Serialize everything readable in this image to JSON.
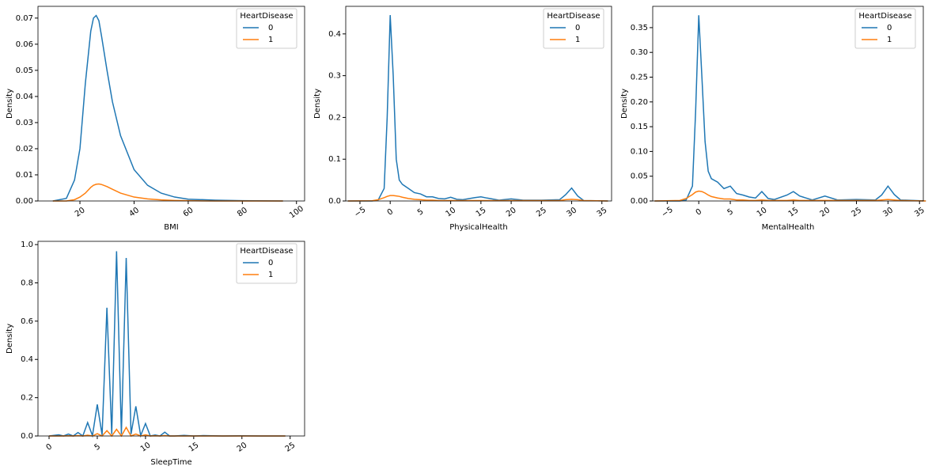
{
  "chart_data": [
    {
      "type": "line",
      "xlabel": "BMI",
      "ylabel": "Density",
      "legend_title": "HeartDisease",
      "legend": "upper right",
      "x": [
        10,
        15,
        18,
        20,
        22,
        24,
        25,
        26,
        27,
        28,
        30,
        32,
        35,
        40,
        45,
        50,
        55,
        60,
        70,
        80,
        95
      ],
      "series": [
        {
          "name": "0",
          "color": "#1f77b4",
          "values": [
            0,
            0.001,
            0.008,
            0.02,
            0.045,
            0.065,
            0.07,
            0.071,
            0.069,
            0.063,
            0.05,
            0.038,
            0.025,
            0.012,
            0.006,
            0.003,
            0.0015,
            0.0007,
            0.0003,
            0.0001,
            0
          ]
        },
        {
          "name": "1",
          "color": "#ff7f0e",
          "values": [
            0,
            0,
            0.0005,
            0.0015,
            0.003,
            0.0052,
            0.006,
            0.0064,
            0.0065,
            0.0063,
            0.0055,
            0.0045,
            0.003,
            0.0015,
            0.0008,
            0.0004,
            0.0002,
            0.0001,
            0,
            0,
            0
          ]
        }
      ],
      "xlim": [
        4.5,
        103
      ],
      "xticks": [
        20,
        40,
        60,
        80,
        100
      ],
      "ylim": [
        0,
        0.0745
      ],
      "yticks": [
        {
          "value": 0,
          "label": "0.00"
        },
        {
          "value": 0.01,
          "label": "0.01"
        },
        {
          "value": 0.02,
          "label": "0.02"
        },
        {
          "value": 0.03,
          "label": "0.03"
        },
        {
          "value": 0.04,
          "label": "0.04"
        },
        {
          "value": 0.05,
          "label": "0.05"
        },
        {
          "value": 0.06,
          "label": "0.06"
        },
        {
          "value": 0.07,
          "label": "0.07"
        }
      ]
    },
    {
      "type": "line",
      "xlabel": "PhysicalHealth",
      "ylabel": "Density",
      "legend_title": "HeartDisease",
      "legend": "upper right",
      "x": [
        -7,
        -3,
        -2,
        -1,
        -0.5,
        0,
        0.5,
        1,
        1.5,
        2,
        3,
        4,
        5,
        6,
        7,
        8,
        9,
        10,
        11,
        12,
        14,
        15,
        16,
        18,
        20,
        22,
        25,
        28,
        29,
        30,
        31,
        32,
        36
      ],
      "series": [
        {
          "name": "0",
          "color": "#1f77b4",
          "values": [
            0,
            0,
            0.002,
            0.03,
            0.2,
            0.445,
            0.3,
            0.1,
            0.05,
            0.04,
            0.03,
            0.02,
            0.017,
            0.01,
            0.01,
            0.006,
            0.005,
            0.009,
            0.004,
            0.003,
            0.008,
            0.01,
            0.007,
            0.002,
            0.005,
            0.002,
            0.002,
            0.003,
            0.015,
            0.031,
            0.012,
            0.001,
            0
          ]
        },
        {
          "name": "1",
          "color": "#ff7f0e",
          "values": [
            0,
            0.0005,
            0.003,
            0.008,
            0.011,
            0.013,
            0.013,
            0.012,
            0.011,
            0.009,
            0.006,
            0.004,
            0.003,
            0.002,
            0.002,
            0.001,
            0.001,
            0.001,
            0.001,
            0.001,
            0.001,
            0.001,
            0.001,
            0.001,
            0.001,
            0.001,
            0.001,
            0.001,
            0.003,
            0.004,
            0.003,
            0.001,
            0
          ]
        }
      ],
      "xlim": [
        -7.35,
        36.6
      ],
      "xticks": [
        {
          "value": -5,
          "label": "−5"
        },
        0,
        5,
        10,
        15,
        20,
        25,
        30,
        35
      ],
      "ylim": [
        0,
        0.466
      ],
      "yticks": [
        {
          "value": 0,
          "label": "0.0"
        },
        {
          "value": 0.1,
          "label": "0.1"
        },
        {
          "value": 0.2,
          "label": "0.2"
        },
        {
          "value": 0.3,
          "label": "0.3"
        },
        {
          "value": 0.4,
          "label": "0.4"
        }
      ]
    },
    {
      "type": "line",
      "xlabel": "MentalHealth",
      "ylabel": "Density",
      "legend_title": "HeartDisease",
      "legend": "upper right",
      "x": [
        -7,
        -3,
        -2,
        -1,
        -0.5,
        0,
        0.5,
        1,
        1.5,
        2,
        3,
        4,
        5,
        6,
        7,
        8,
        9,
        10,
        11,
        12,
        14,
        15,
        16,
        18,
        20,
        22,
        25,
        28,
        29,
        30,
        31,
        32,
        36
      ],
      "series": [
        {
          "name": "0",
          "color": "#1f77b4",
          "values": [
            0,
            0,
            0.002,
            0.03,
            0.18,
            0.375,
            0.25,
            0.12,
            0.06,
            0.045,
            0.038,
            0.025,
            0.03,
            0.015,
            0.012,
            0.008,
            0.006,
            0.019,
            0.005,
            0.003,
            0.012,
            0.019,
            0.01,
            0.002,
            0.01,
            0.002,
            0.003,
            0.002,
            0.012,
            0.03,
            0.013,
            0.002,
            0
          ]
        },
        {
          "name": "1",
          "color": "#ff7f0e",
          "values": [
            0,
            0.001,
            0.005,
            0.013,
            0.018,
            0.02,
            0.019,
            0.016,
            0.012,
            0.009,
            0.006,
            0.004,
            0.004,
            0.002,
            0.002,
            0.001,
            0.001,
            0.002,
            0.001,
            0.001,
            0.001,
            0.002,
            0.001,
            0.001,
            0.001,
            0.001,
            0.001,
            0.001,
            0.002,
            0.003,
            0.002,
            0.001,
            0
          ]
        }
      ],
      "xlim": [
        -7.3,
        35.6
      ],
      "xticks": [
        {
          "value": -5,
          "label": "−5"
        },
        0,
        5,
        10,
        15,
        20,
        25,
        30,
        35
      ],
      "ylim": [
        0,
        0.393
      ],
      "yticks": [
        {
          "value": 0,
          "label": "0.00"
        },
        {
          "value": 0.05,
          "label": "0.05"
        },
        {
          "value": 0.1,
          "label": "0.10"
        },
        {
          "value": 0.15,
          "label": "0.15"
        },
        {
          "value": 0.2,
          "label": "0.20"
        },
        {
          "value": 0.25,
          "label": "0.25"
        },
        {
          "value": 0.3,
          "label": "0.30"
        },
        {
          "value": 0.35,
          "label": "0.35"
        }
      ]
    },
    {
      "type": "line",
      "xlabel": "SleepTime",
      "ylabel": "Density",
      "legend_title": "HeartDisease",
      "legend": "upper right",
      "x": [
        0,
        1,
        1.5,
        2,
        2.5,
        3,
        3.5,
        4,
        4.5,
        5,
        5.5,
        6,
        6.5,
        7,
        7.5,
        8,
        8.5,
        9,
        9.5,
        10,
        10.5,
        11,
        11.5,
        12,
        12.5,
        13,
        14,
        15,
        16,
        18,
        20,
        22,
        24.5
      ],
      "series": [
        {
          "name": "0",
          "color": "#1f77b4",
          "values": [
            0,
            0.006,
            0,
            0.01,
            0,
            0.018,
            0,
            0.07,
            0.002,
            0.165,
            0.005,
            0.67,
            0.01,
            0.965,
            0.01,
            0.93,
            0.01,
            0.155,
            0.002,
            0.065,
            0,
            0.005,
            0,
            0.02,
            0,
            0,
            0.003,
            0,
            0.002,
            0,
            0.001,
            0,
            0
          ]
        },
        {
          "name": "1",
          "color": "#ff7f0e",
          "values": [
            0,
            0,
            0,
            0.001,
            0,
            0.002,
            0,
            0.004,
            0,
            0.012,
            0,
            0.028,
            0,
            0.035,
            0,
            0.045,
            0,
            0.01,
            0,
            0.006,
            0,
            0.001,
            0,
            0.002,
            0,
            0,
            0,
            0,
            0,
            0,
            0,
            0,
            0
          ]
        }
      ],
      "xlim": [
        -1.15,
        26.5
      ],
      "xticks": [
        0,
        5,
        10,
        15,
        20,
        25
      ],
      "ylim": [
        0,
        1.017
      ],
      "yticks": [
        {
          "value": 0,
          "label": "0.0"
        },
        {
          "value": 0.2,
          "label": "0.2"
        },
        {
          "value": 0.4,
          "label": "0.4"
        },
        {
          "value": 0.6,
          "label": "0.6"
        },
        {
          "value": 0.8,
          "label": "0.8"
        },
        {
          "value": 1,
          "label": "1.0"
        }
      ]
    }
  ]
}
